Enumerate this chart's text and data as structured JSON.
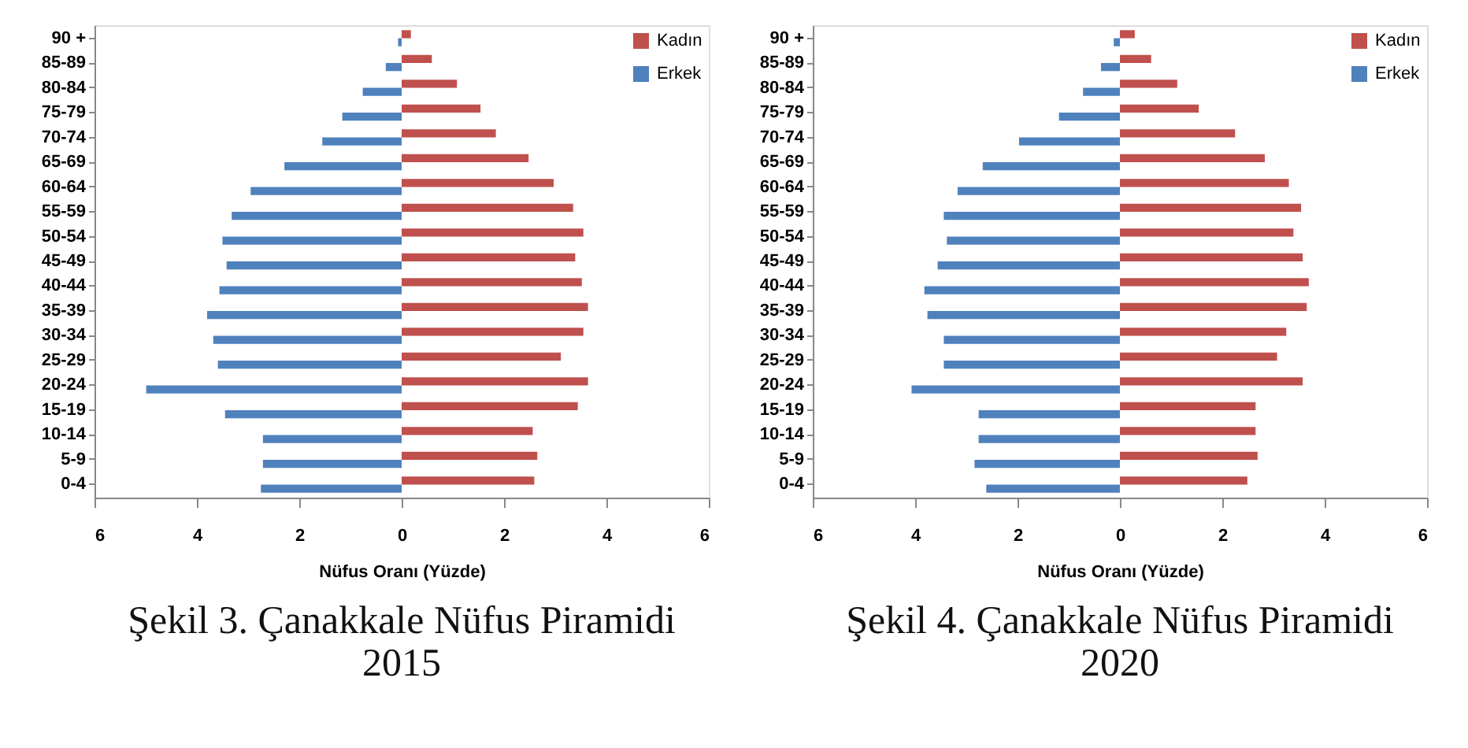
{
  "chart_data": [
    {
      "type": "bar",
      "orientation": "horizontal",
      "title": "Şekil 3. Çanakkale Nüfus Piramidi 2015",
      "xlabel": "Nüfus Oranı (Yüzde)",
      "categories": [
        "90 +",
        "85-89",
        "80-84",
        "75-79",
        "70-74",
        "65-69",
        "60-64",
        "55-59",
        "50-54",
        "45-49",
        "40-44",
        "35-39",
        "30-34",
        "25-29",
        "20-24",
        "15-19",
        "10-14",
        "5-9",
        "0-4"
      ],
      "series": [
        {
          "name": "Kadın",
          "color": "#c0504d",
          "values": [
            0.18,
            0.59,
            1.08,
            1.54,
            1.84,
            2.48,
            2.97,
            3.35,
            3.55,
            3.39,
            3.52,
            3.64,
            3.55,
            3.11,
            3.64,
            3.44,
            2.56,
            2.65,
            2.59
          ]
        },
        {
          "name": "Erkek",
          "color": "#4f81bd",
          "values": [
            -0.07,
            -0.31,
            -0.76,
            -1.16,
            -1.55,
            -2.29,
            -2.95,
            -3.32,
            -3.5,
            -3.42,
            -3.56,
            -3.8,
            -3.68,
            -3.59,
            -4.99,
            -3.45,
            -2.71,
            -2.71,
            -2.75
          ]
        }
      ],
      "xlim": [
        -6,
        6
      ],
      "xticks": [
        {
          "value": -6,
          "label": "6"
        },
        {
          "value": -4,
          "label": "4"
        },
        {
          "value": -2,
          "label": "2"
        },
        0,
        2,
        4,
        6
      ],
      "legend": "top right",
      "grid": false
    },
    {
      "type": "bar",
      "orientation": "horizontal",
      "title": "Şekil 4. Çanakkale Nüfus Piramidi 2020",
      "xlabel": "Nüfus Oranı (Yüzde)",
      "categories": [
        "90 +",
        "85-89",
        "80-84",
        "75-79",
        "70-74",
        "65-69",
        "60-64",
        "55-59",
        "50-54",
        "45-49",
        "40-44",
        "35-39",
        "30-34",
        "25-29",
        "20-24",
        "15-19",
        "10-14",
        "5-9",
        "0-4"
      ],
      "series": [
        {
          "name": "Kadın",
          "color": "#c0504d",
          "values": [
            0.29,
            0.61,
            1.12,
            1.54,
            2.25,
            2.83,
            3.3,
            3.54,
            3.39,
            3.57,
            3.69,
            3.65,
            3.25,
            3.07,
            3.57,
            2.65,
            2.65,
            2.69,
            2.49
          ]
        },
        {
          "name": "Erkek",
          "color": "#4f81bd",
          "values": [
            -0.12,
            -0.37,
            -0.72,
            -1.19,
            -1.97,
            -2.68,
            -3.17,
            -3.44,
            -3.38,
            -3.56,
            -3.82,
            -3.76,
            -3.44,
            -3.44,
            -4.07,
            -2.76,
            -2.76,
            -2.84,
            -2.61
          ]
        }
      ],
      "xlim": [
        -6,
        6
      ],
      "xticks": [
        {
          "value": -6,
          "label": "6"
        },
        {
          "value": -4,
          "label": "4"
        },
        {
          "value": -2,
          "label": "2"
        },
        0,
        2,
        4,
        6
      ],
      "legend": "top right",
      "grid": false
    }
  ]
}
